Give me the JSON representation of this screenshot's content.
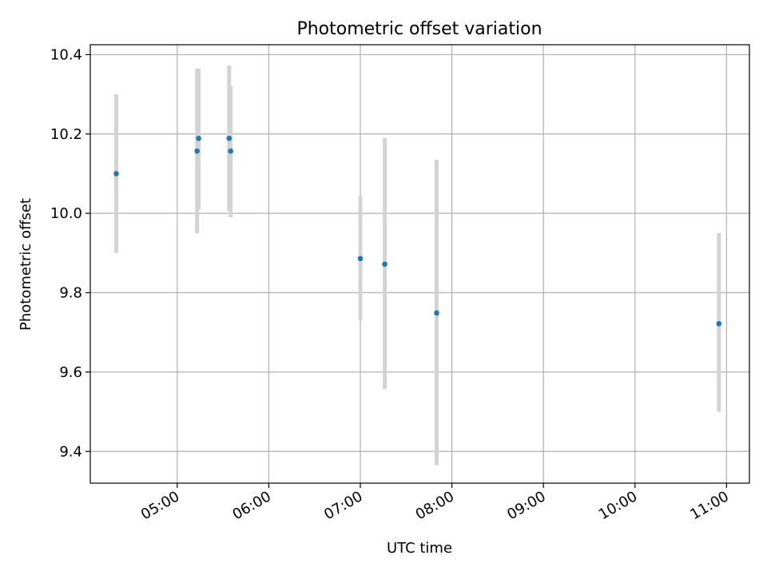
{
  "chart_data": {
    "type": "scatter",
    "title": "Photometric offset variation",
    "xlabel": "UTC time",
    "ylabel": "Photometric offset",
    "x_ticks": [
      "05:00",
      "06:00",
      "07:00",
      "08:00",
      "09:00",
      "10:00",
      "11:00"
    ],
    "y_ticks": [
      "9.4",
      "9.6",
      "9.8",
      "10.0",
      "10.2",
      "10.4"
    ],
    "ylim": [
      9.32,
      10.425
    ],
    "xlim": [
      "04:03",
      "11:15"
    ],
    "grid": true,
    "colors": {
      "point": "#1f77b4",
      "errorbar": "#d3d3d3",
      "grid": "#b0b0b0"
    },
    "points": [
      {
        "x": "04:20",
        "y": 10.1,
        "yerr_low": 9.9,
        "yerr_high": 10.3
      },
      {
        "x": "05:13",
        "y": 10.157,
        "yerr_low": 9.95,
        "yerr_high": 10.365
      },
      {
        "x": "05:14",
        "y": 10.189,
        "yerr_low": 10.01,
        "yerr_high": 10.365
      },
      {
        "x": "05:34",
        "y": 10.189,
        "yerr_low": 10.005,
        "yerr_high": 10.373
      },
      {
        "x": "05:35",
        "y": 10.157,
        "yerr_low": 9.99,
        "yerr_high": 10.32
      },
      {
        "x": "07:00",
        "y": 9.886,
        "yerr_low": 9.73,
        "yerr_high": 10.043
      },
      {
        "x": "07:16",
        "y": 9.872,
        "yerr_low": 9.557,
        "yerr_high": 10.19
      },
      {
        "x": "07:50",
        "y": 9.749,
        "yerr_low": 9.365,
        "yerr_high": 10.135
      },
      {
        "x": "10:55",
        "y": 9.722,
        "yerr_low": 9.5,
        "yerr_high": 9.95
      }
    ]
  }
}
